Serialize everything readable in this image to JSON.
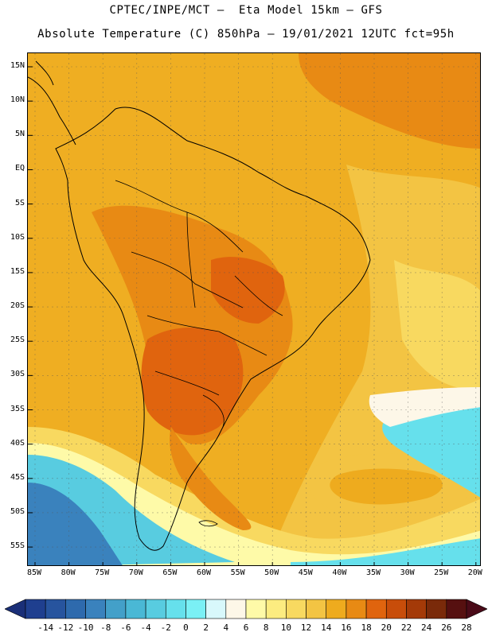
{
  "title_line1": "CPTEC/INPE/MCT –  Eta Model 15km – GFS",
  "title_line2": "Absolute Temperature (C) 850hPa – 19/01/2021 12UTC fct=95h",
  "lat_labels": [
    "15N",
    "10N",
    "5N",
    "EQ",
    "5S",
    "10S",
    "15S",
    "20S",
    "25S",
    "30S",
    "35S",
    "40S",
    "45S",
    "50S",
    "55S"
  ],
  "lon_labels": [
    "85W",
    "80W",
    "75W",
    "70W",
    "65W",
    "60W",
    "55W",
    "50W",
    "45W",
    "40W",
    "35W",
    "30W",
    "25W",
    "20W"
  ],
  "colorbar": {
    "labels": [
      "-14",
      "-12",
      "-10",
      "-8",
      "-6",
      "-4",
      "-2",
      "0",
      "2",
      "4",
      "6",
      "8",
      "10",
      "12",
      "14",
      "16",
      "18",
      "20",
      "22",
      "24",
      "26",
      "28"
    ],
    "colors": [
      "#1f3f8f",
      "#27549e",
      "#2e6aad",
      "#3a82bd",
      "#43a0c9",
      "#4ab8d5",
      "#58cce0",
      "#66e0ec",
      "#7af0f5",
      "#d8f8fb",
      "#fdf7e8",
      "#fefaa8",
      "#fcec80",
      "#f8d960",
      "#f3c443",
      "#eeab1e",
      "#e88a14",
      "#e0640e",
      "#c84d0a",
      "#a43a08",
      "#7a2a0a",
      "#561010"
    ],
    "low_arrow_color": "#1a2f78",
    "high_arrow_color": "#4a0a18"
  }
}
